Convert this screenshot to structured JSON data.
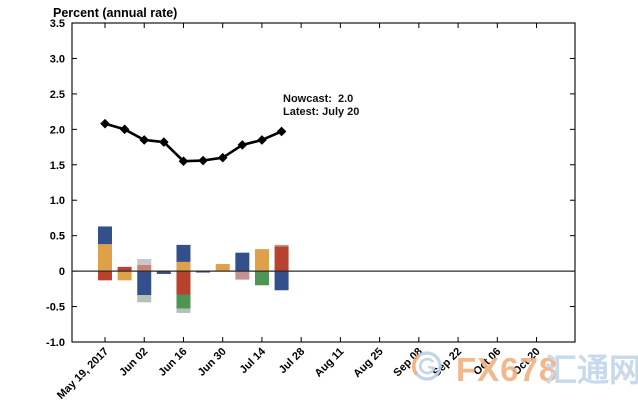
{
  "chart_data": {
    "type": "bar+line combo (stacked contribution bars with nowcast line)",
    "title": "Percent (annual rate)",
    "annotation": {
      "nowcast_label": "Nowcast:  2.0",
      "latest_label": "Latest: July 20"
    },
    "ylim": [
      -1.0,
      3.5
    ],
    "y_tick_labels": [
      "3.5",
      "3.0",
      "2.5",
      "2.0",
      "1.5",
      "1.0",
      "0.5",
      "0",
      "-0.5",
      "-1.0"
    ],
    "x_tick_labels": [
      "May 19, 2017",
      "Jun 02",
      "Jun 16",
      "Jun 30",
      "Jul 14",
      "Jul 28",
      "Aug 11",
      "Aug 25",
      "Sep 08",
      "Sep 22",
      "Oct 06",
      "Oct 20"
    ],
    "grid": "off",
    "legend": "none",
    "line_series": {
      "name": "Nowcast",
      "marker": "diamond",
      "color": "#000000",
      "dates": [
        "May 19",
        "May 26",
        "Jun 02",
        "Jun 09",
        "Jun 16",
        "Jun 23",
        "Jun 30",
        "Jul 07",
        "Jul 14",
        "Jul 20"
      ],
      "values": [
        2.08,
        2.0,
        1.85,
        1.82,
        1.55,
        1.56,
        1.6,
        1.78,
        1.85,
        1.97
      ]
    },
    "bar_series": {
      "description": "weekly stacked data-release contributions, positive above zero and negative below",
      "colors": {
        "blue": "#33508C",
        "orange": "#DFA04A",
        "red": "#B9422F",
        "green": "#4D9455",
        "salmon": "#C98377",
        "pink": "#C79191",
        "gray": "#C6C6CE",
        "graygreen": "#B2C2B6"
      },
      "bars": [
        {
          "date": "May 19",
          "pos": [
            [
              "orange",
              0.38
            ],
            [
              "blue",
              0.25
            ]
          ],
          "neg": [
            [
              "red",
              0.13
            ]
          ]
        },
        {
          "date": "May 26",
          "pos": [
            [
              "red",
              0.06
            ]
          ],
          "neg": [
            [
              "orange",
              0.13
            ]
          ]
        },
        {
          "date": "Jun 02",
          "pos": [
            [
              "salmon",
              0.09
            ],
            [
              "gray",
              0.08
            ]
          ],
          "neg": [
            [
              "blue",
              0.34
            ],
            [
              "graygreen",
              0.1
            ]
          ]
        },
        {
          "date": "Jun 09",
          "pos": [],
          "neg": [
            [
              "blue",
              0.04
            ]
          ]
        },
        {
          "date": "Jun 16",
          "pos": [
            [
              "orange",
              0.13
            ],
            [
              "blue",
              0.24
            ]
          ],
          "neg": [
            [
              "red",
              0.33
            ],
            [
              "green",
              0.2
            ],
            [
              "graygreen",
              0.06
            ]
          ]
        },
        {
          "date": "Jun 23",
          "pos": [],
          "neg": [
            [
              "blue",
              0.02
            ]
          ]
        },
        {
          "date": "Jun 30",
          "pos": [
            [
              "orange",
              0.1
            ]
          ],
          "neg": []
        },
        {
          "date": "Jul 07",
          "pos": [
            [
              "blue",
              0.26
            ]
          ],
          "neg": [
            [
              "pink",
              0.12
            ]
          ]
        },
        {
          "date": "Jul 14",
          "pos": [
            [
              "orange",
              0.31
            ]
          ],
          "neg": [
            [
              "green",
              0.2
            ]
          ]
        },
        {
          "date": "Jul 20",
          "pos": [
            [
              "red",
              0.35
            ],
            [
              "pink",
              0.02
            ]
          ],
          "neg": [
            [
              "blue",
              0.27
            ]
          ]
        }
      ]
    }
  },
  "watermark": {
    "text_fx": "FX678",
    "text_cn": "汇通网",
    "color_fx": "#F3B183",
    "color_cn": "#C3D6EA",
    "logo_blue": "#BCD2E8",
    "logo_orange": "#F0AC7A"
  }
}
